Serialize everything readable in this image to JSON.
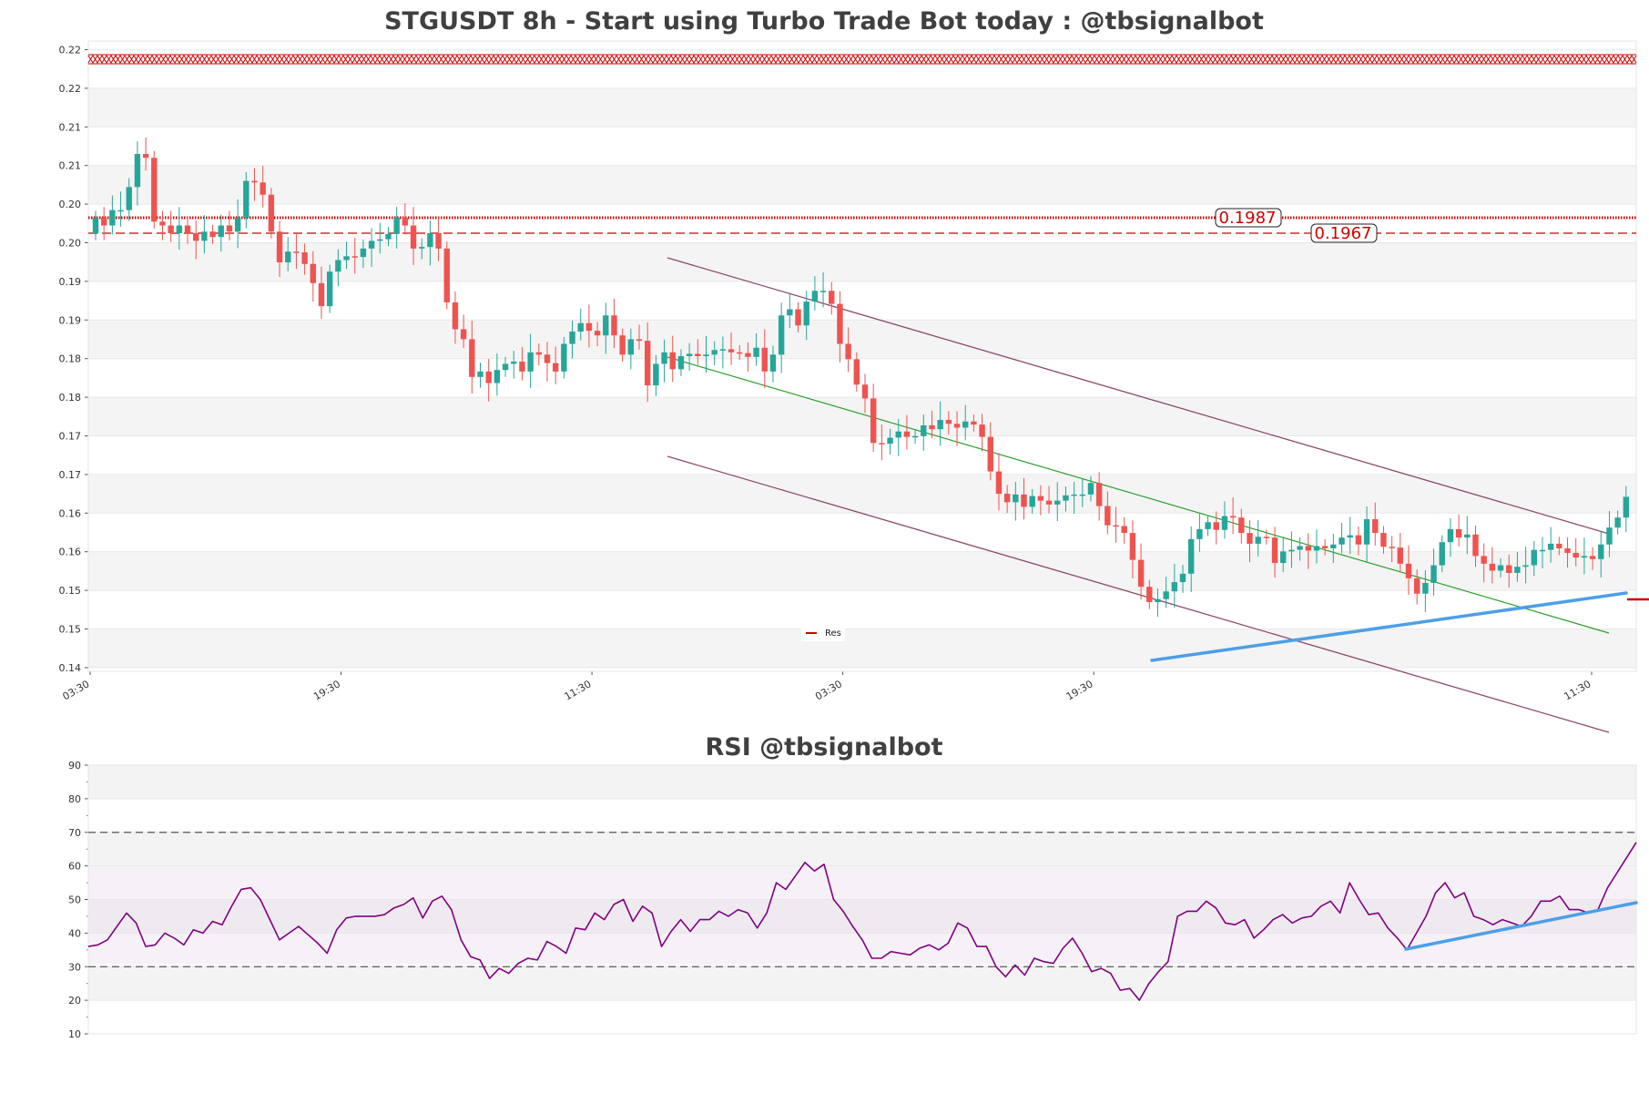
{
  "chart_data": [
    {
      "type": "candlestick",
      "title": "STGUSDT 8h - Start using Turbo Trade Bot today : @tbsignalbot",
      "y_ticks": [
        "0.22",
        "0.22",
        "0.21",
        "0.21",
        "0.20",
        "0.20",
        "0.19",
        "0.19",
        "0.18",
        "0.18",
        "0.17",
        "0.17",
        "0.16",
        "0.16",
        "0.15",
        "0.15",
        "0.14"
      ],
      "x_ticks": [
        "03:30",
        "19:30",
        "11:30",
        "03:30",
        "19:30",
        "11:30"
      ],
      "ylim": [
        0.14,
        0.222
      ],
      "levels": [
        {
          "value": 0.1987,
          "label": "0.1987",
          "style": "dotted",
          "color": "#cc0000"
        },
        {
          "value": 0.1967,
          "label": "0.1967",
          "style": "dashed",
          "color": "#cc0000"
        }
      ],
      "legend": {
        "entries": [
          "Res"
        ],
        "placement": "bottom-center"
      },
      "colors": {
        "up": "#26a69a",
        "down": "#ef5350",
        "channel": "#8b4a6b",
        "mid": "#2ca02c",
        "trend": "#4c9fe8"
      },
      "closes": [
        0.199,
        0.198,
        0.2,
        0.2,
        0.203,
        0.2073,
        0.2068,
        0.1985,
        0.198,
        0.197,
        0.198,
        0.197,
        0.196,
        0.1972,
        0.1965,
        0.198,
        0.1972,
        0.199,
        0.2038,
        0.2036,
        0.202,
        0.1972,
        0.1932,
        0.1946,
        0.1945,
        0.193,
        0.1905,
        0.1875,
        0.192,
        0.1935,
        0.194,
        0.1939,
        0.195,
        0.196,
        0.1962,
        0.1969,
        0.199,
        0.198,
        0.195,
        0.1952,
        0.197,
        0.195,
        0.188,
        0.1845,
        0.1832,
        0.1783,
        0.179,
        0.1775,
        0.1792,
        0.18,
        0.1803,
        0.179,
        0.1815,
        0.1812,
        0.1801,
        0.179,
        0.1826,
        0.1842,
        0.1853,
        0.1843,
        0.1837,
        0.1863,
        0.1837,
        0.1812,
        0.1832,
        0.183,
        0.1772,
        0.18,
        0.1815,
        0.1793,
        0.181,
        0.1813,
        0.181,
        0.1812,
        0.1818,
        0.1819,
        0.1815,
        0.1814,
        0.1809,
        0.1821,
        0.179,
        0.1812,
        0.1863,
        0.1871,
        0.185,
        0.1881,
        0.1895,
        0.1895,
        0.1878,
        0.1826,
        0.1806,
        0.1773,
        0.1755,
        0.1697,
        0.1696,
        0.1704,
        0.1712,
        0.1705,
        0.1706,
        0.172,
        0.1715,
        0.1727,
        0.1722,
        0.1717,
        0.1725,
        0.1721,
        0.1705,
        0.166,
        0.1631,
        0.162,
        0.163,
        0.1614,
        0.1628,
        0.1622,
        0.1617,
        0.1622,
        0.1629,
        0.163,
        0.163,
        0.1645,
        0.1615,
        0.159,
        0.1589,
        0.158,
        0.1545,
        0.151,
        0.149,
        0.1494,
        0.1504,
        0.1516,
        0.1527,
        0.1572,
        0.1585,
        0.1594,
        0.1584,
        0.1602,
        0.16,
        0.158,
        0.1566,
        0.1575,
        0.1574,
        0.1541,
        0.1556,
        0.1558,
        0.1563,
        0.1557,
        0.1563,
        0.156,
        0.1565,
        0.1574,
        0.1577,
        0.1565,
        0.1598,
        0.158,
        0.1562,
        0.1561,
        0.154,
        0.1521,
        0.1501,
        0.1515,
        0.1538,
        0.1568,
        0.1585,
        0.1574,
        0.1578,
        0.155,
        0.154,
        0.1531,
        0.1538,
        0.1528,
        0.1536,
        0.1538,
        0.1558,
        0.1558,
        0.1566,
        0.156,
        0.1554,
        0.1548,
        0.155,
        0.1546,
        0.1565,
        0.1587,
        0.16,
        0.1627
      ]
    },
    {
      "type": "line",
      "title": "RSI @tbsignalbot",
      "y_ticks": [
        "90",
        "80",
        "70",
        "60",
        "50",
        "40",
        "30",
        "20",
        "10"
      ],
      "ylim": [
        10,
        90
      ],
      "overbought": 70,
      "oversold": 30,
      "colors": {
        "line": "#800080",
        "trend": "#4c9fe8"
      },
      "values": [
        36,
        36.5,
        38,
        42,
        46,
        43,
        36,
        36.5,
        40,
        38.5,
        36.5,
        41,
        40,
        43.5,
        42.5,
        48,
        53,
        53.5,
        50,
        44,
        38,
        40,
        42,
        39.5,
        37,
        34,
        41,
        44.5,
        45,
        45,
        45,
        45.5,
        47.5,
        48.5,
        50.5,
        44.5,
        49.5,
        51,
        47,
        38,
        33,
        32,
        26.5,
        29.5,
        28,
        31,
        32.5,
        32,
        37.5,
        36,
        34,
        41.5,
        41,
        46,
        44,
        48.5,
        50,
        43.5,
        48,
        46,
        36,
        40.5,
        44,
        40.5,
        44,
        44,
        46.5,
        45,
        47,
        46,
        41.5,
        46,
        55,
        53,
        57,
        61,
        58.5,
        60.5,
        50,
        46.5,
        42,
        38,
        32.5,
        32.5,
        34.5,
        34,
        33.5,
        35.5,
        36.5,
        35,
        37,
        43,
        41.5,
        36,
        36,
        30,
        27,
        30.5,
        27.5,
        32.5,
        31.5,
        31,
        35.5,
        38.5,
        34,
        28.5,
        29.5,
        28,
        23,
        23.5,
        20,
        25,
        28.5,
        31.5,
        45,
        46.5,
        46.5,
        49.5,
        47.5,
        43,
        42.5,
        44,
        38.5,
        41,
        44,
        45.5,
        43,
        44.5,
        45,
        48,
        49.5,
        46,
        55,
        50,
        45.5,
        46,
        41.5,
        38.5,
        35,
        40,
        45,
        52,
        55,
        50.5,
        52,
        45,
        44,
        42.5,
        44,
        43,
        42,
        45,
        49.5,
        49.5,
        51,
        47,
        47,
        46,
        47,
        53.5,
        58,
        62.5,
        67
      ]
    }
  ]
}
